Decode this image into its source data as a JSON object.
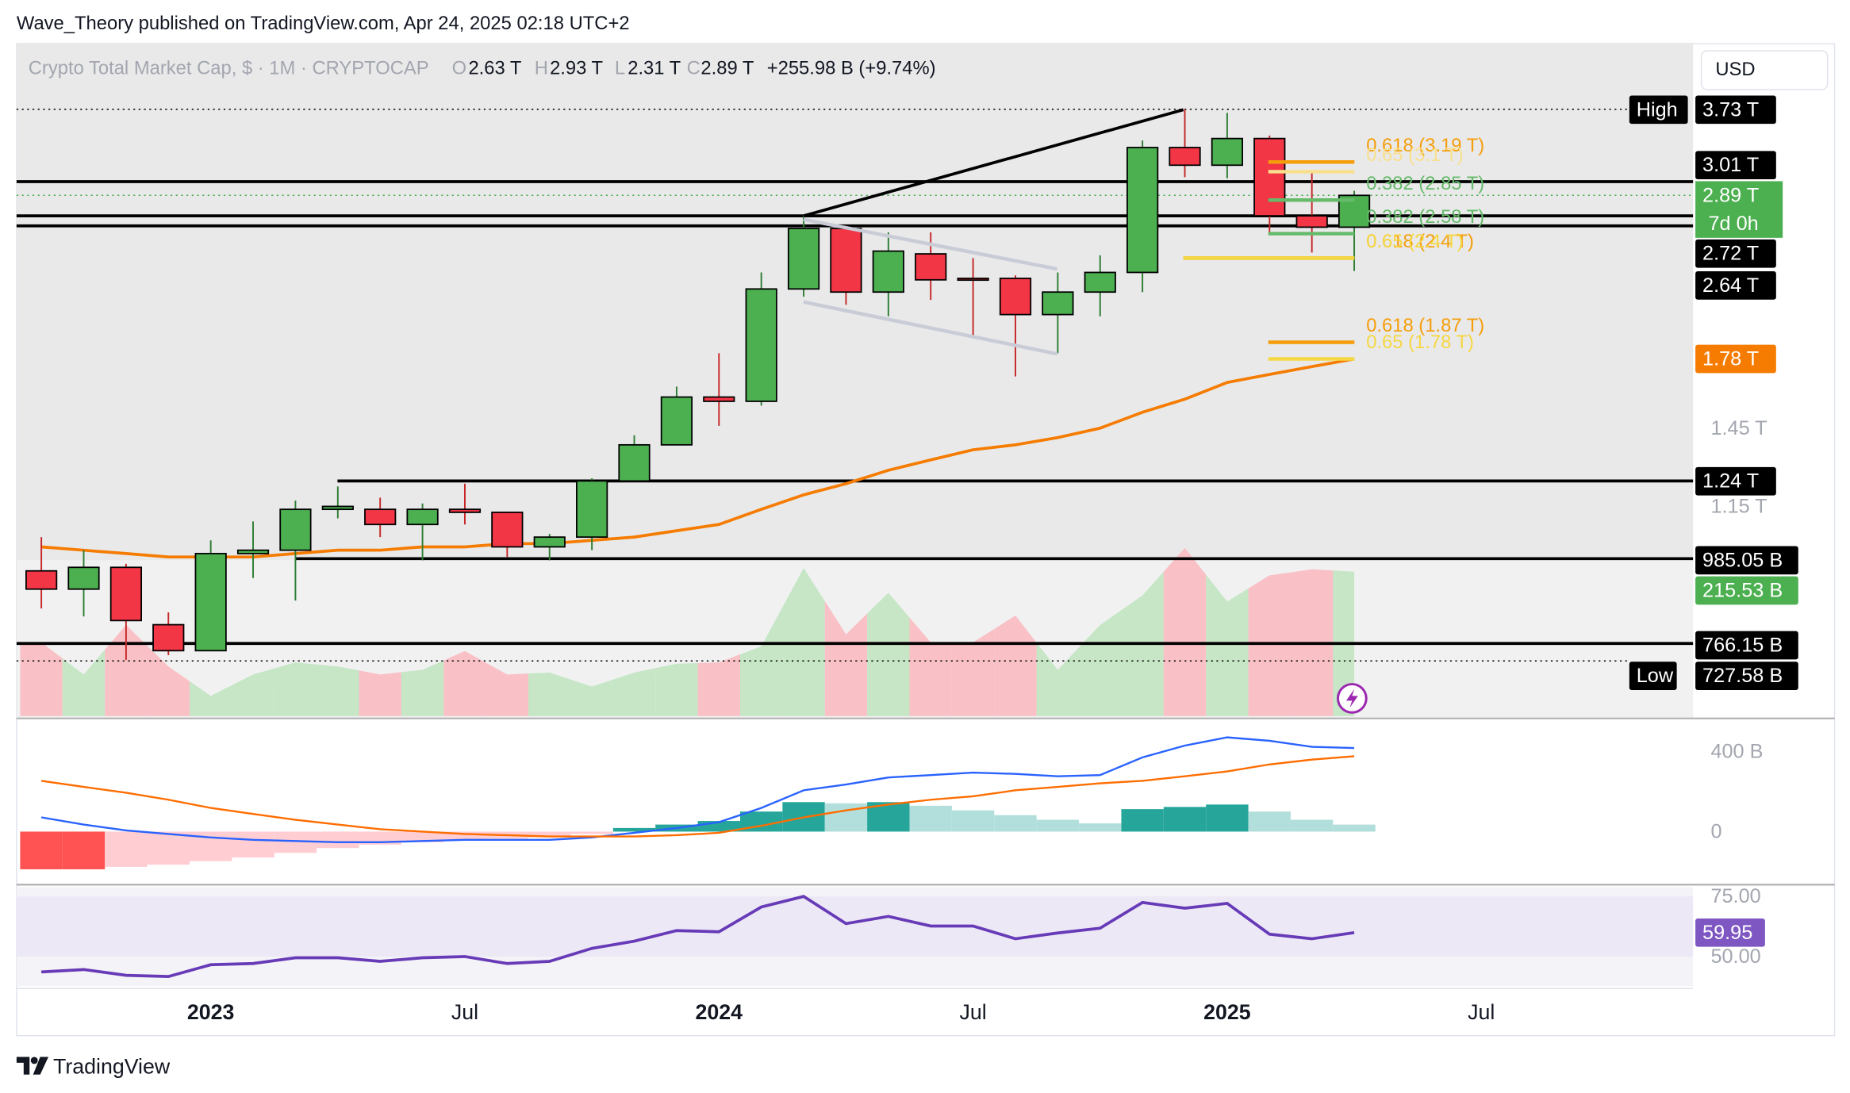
{
  "header": {
    "text": "Wave_Theory published on TradingView.com, Apr 24, 2025 02:18 UTC+2"
  },
  "currency": "USD",
  "footer": "TradingView",
  "chart_data": [
    {
      "type": "candlestick",
      "title": "Crypto Total Market Cap, $ · 1M · CRYPTOCAP",
      "ohlc_letters": [
        "O",
        "H",
        "L",
        "C"
      ],
      "ohlc_labels": [
        "2.63 T",
        "2.93 T",
        "2.31 T",
        "2.89 T"
      ],
      "change_label": "+255.98 B (+9.74%)",
      "x": [
        0,
        1,
        2,
        3,
        4,
        5,
        6,
        7,
        8,
        9,
        10,
        11,
        12,
        13,
        14,
        15,
        16,
        17,
        18,
        19,
        20,
        21,
        22,
        23,
        24,
        25,
        26,
        27,
        28,
        29,
        30,
        31
      ],
      "xlim": [
        -0.585,
        39
      ],
      "xticks": [
        {
          "value": 4,
          "label": "2023"
        },
        {
          "value": 10,
          "label": "Jul"
        },
        {
          "value": 16,
          "label": "2024"
        },
        {
          "value": 22,
          "label": "Jul"
        },
        {
          "value": 28,
          "label": "2025"
        },
        {
          "value": 34,
          "label": "Jul"
        }
      ],
      "open": [
        0.95,
        0.9,
        0.96,
        0.81,
        0.75,
        1.0,
        1.01,
        1.14,
        1.14,
        1.09,
        1.14,
        1.13,
        1.02,
        1.05,
        1.24,
        1.38,
        1.59,
        1.57,
        2.19,
        2.62,
        2.17,
        2.43,
        2.26,
        2.26,
        2.03,
        2.17,
        2.3,
        3.33,
        3.16,
        3.42,
        2.72,
        2.63
      ],
      "high": [
        1.05,
        1.01,
        0.97,
        0.84,
        1.04,
        1.1,
        1.17,
        1.22,
        1.18,
        1.16,
        1.23,
        1.13,
        1.06,
        1.25,
        1.42,
        1.64,
        1.81,
        2.3,
        2.73,
        2.64,
        2.59,
        2.59,
        2.4,
        2.28,
        2.3,
        2.42,
        3.4,
        3.73,
        3.69,
        3.45,
        3.11,
        2.93
      ],
      "low": [
        0.85,
        0.83,
        0.73,
        0.74,
        0.75,
        0.93,
        0.87,
        1.11,
        1.05,
        0.98,
        1.09,
        0.99,
        0.98,
        1.01,
        1.24,
        1.38,
        1.46,
        1.55,
        2.14,
        2.09,
        2.02,
        2.12,
        1.9,
        1.69,
        1.81,
        2.02,
        2.17,
        3.05,
        3.04,
        2.57,
        2.44,
        2.31
      ],
      "close": [
        0.9,
        0.96,
        0.82,
        0.75,
        1.0,
        1.01,
        1.14,
        1.15,
        1.09,
        1.14,
        1.13,
        1.02,
        1.05,
        1.24,
        1.38,
        1.59,
        1.57,
        2.19,
        2.62,
        2.17,
        2.45,
        2.25,
        2.25,
        2.03,
        2.17,
        2.3,
        3.33,
        3.16,
        3.42,
        2.72,
        2.63,
        2.89
      ],
      "up_color": "#4caf50",
      "down_color": "#f23645",
      "close_label": "2.89 T",
      "countdown": "7d 0h",
      "log_scale": true,
      "ylim": [
        0.618,
        4.53
      ],
      "yticks": [
        {
          "value": 1.45,
          "label": "1.45 T"
        },
        {
          "value": 1.15,
          "label": "1.15 T"
        }
      ],
      "ema": {
        "color": "#f57c00",
        "last_label": "1.78 T",
        "values": [
          1.02,
          1.01,
          1.0,
          0.99,
          0.99,
          0.99,
          1.0,
          1.01,
          1.01,
          1.02,
          1.02,
          1.03,
          1.03,
          1.04,
          1.05,
          1.07,
          1.09,
          1.14,
          1.19,
          1.23,
          1.28,
          1.32,
          1.36,
          1.38,
          1.41,
          1.45,
          1.52,
          1.58,
          1.66,
          1.7,
          1.74,
          1.78
        ]
      },
      "volume": {
        "up_color": "#c6e6c6",
        "down_color": "#f9c0c6",
        "last_label": "215.53 B",
        "values": [
          110,
          62,
          136,
          74,
          30,
          62,
          80,
          74,
          62,
          69,
          97,
          62,
          65,
          44,
          65,
          78,
          80,
          104,
          221,
          122,
          184,
          110,
          110,
          150,
          69,
          136,
          180,
          251,
          171,
          210,
          219,
          215.53
        ]
      },
      "levels": [
        {
          "value": 3.73,
          "label": "3.73 T",
          "tag": "High"
        },
        {
          "value": 3.01,
          "label": "3.01 T"
        },
        {
          "value": 2.72,
          "label": "2.72 T"
        },
        {
          "value": 2.64,
          "label": "2.64 T"
        },
        {
          "value": 1.24,
          "label": "1.24 T"
        },
        {
          "value": 0.98505,
          "label": "985.05 B"
        },
        {
          "value": 0.76615,
          "label": "766.15 B"
        },
        {
          "value": 0.72758,
          "label": "727.58 B",
          "tag": "Low"
        }
      ],
      "fibonacci": [
        {
          "label": "0.618 (3.19 T)",
          "value": 3.19,
          "color": "#f59e0b"
        },
        {
          "label": "0.65 (3.1 T)",
          "value": 3.1,
          "color": "#f8e08e"
        },
        {
          "label": "0.382 (2.85 T)",
          "value": 2.85,
          "color": "#66bb6a"
        },
        {
          "label": "0.382 (2.58 T)",
          "value": 2.58,
          "color": "#66bb6a"
        },
        {
          "label": "0.618 (2.4 T)",
          "value": 2.4,
          "color": "#f59e0b"
        },
        {
          "label": "0.65 (2.4 T)",
          "value": 2.4,
          "color": "#f5d742"
        },
        {
          "label": "0.618 (1.87 T)",
          "value": 1.87,
          "color": "#f59e0b"
        },
        {
          "label": "0.65 (1.78 T)",
          "value": 1.78,
          "color": "#f5d742"
        }
      ]
    },
    {
      "type": "macd",
      "ylim": [
        -253,
        553
      ],
      "yticks": [
        0,
        {
          "value": 400,
          "label": "400 B"
        }
      ],
      "series": [
        {
          "color": "#2962ff",
          "values": [
            71,
            35,
            6,
            -12,
            -29,
            -41,
            -47,
            -53,
            -53,
            -47,
            -41,
            -41,
            -41,
            -29,
            -6,
            18,
            47,
            118,
            206,
            235,
            270,
            282,
            294,
            288,
            276,
            282,
            370,
            429,
            470,
            453,
            423,
            417
          ]
        },
        {
          "color": "#ff6d00",
          "values": [
            253,
            223,
            194,
            159,
            118,
            88,
            59,
            35,
            12,
            0,
            -12,
            -18,
            -24,
            -24,
            -24,
            -18,
            -6,
            29,
            71,
            106,
            135,
            159,
            176,
            206,
            223,
            241,
            253,
            276,
            300,
            335,
            359,
            376
          ]
        }
      ],
      "histogram": {
        "colors": [
          "#ff5252",
          "#ffcdd2",
          "#26a69a",
          "#b2dfdb"
        ],
        "values": [
          -188,
          -188,
          -176,
          -165,
          -147,
          -129,
          -106,
          -82,
          -65,
          -53,
          -41,
          -35,
          -29,
          -12,
          18,
          35,
          53,
          100,
          147,
          141,
          147,
          129,
          106,
          82,
          59,
          41,
          112,
          123,
          135,
          100,
          59,
          35
        ]
      }
    },
    {
      "type": "rsi",
      "ylim": [
        37.7,
        78.9
      ],
      "yticks": [
        {
          "value": 75,
          "label": "75.00"
        },
        {
          "value": 50,
          "label": "50.00"
        }
      ],
      "series": [
        {
          "color": "#673ab7",
          "values": [
            43.6,
            44.6,
            42.2,
            41.7,
            46.6,
            47.1,
            49.5,
            49.5,
            48.0,
            49.5,
            50.0,
            47.1,
            48.0,
            53.4,
            56.4,
            60.8,
            60.3,
            70.6,
            75.0,
            63.7,
            66.7,
            62.7,
            62.7,
            57.4,
            59.8,
            61.8,
            72.5,
            70.1,
            72.1,
            59.3,
            57.4,
            59.95
          ]
        }
      ]
    }
  ]
}
